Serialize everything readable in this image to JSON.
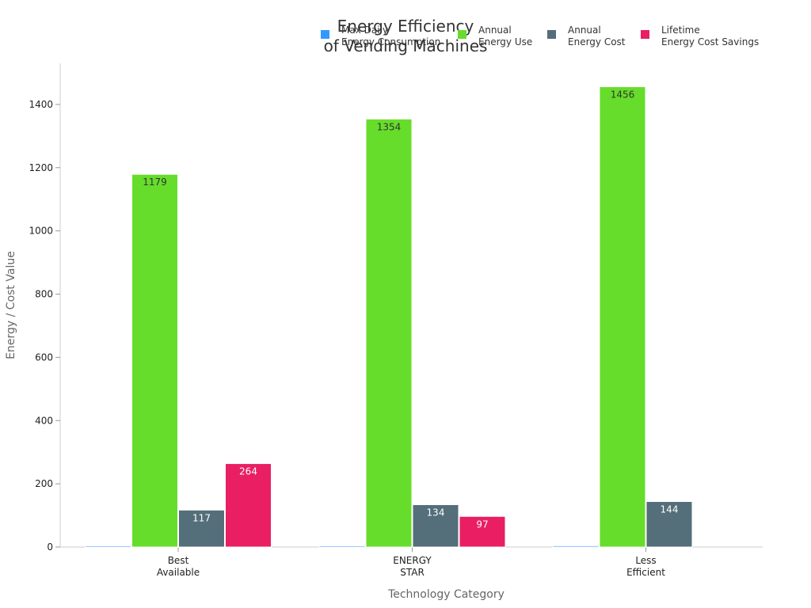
{
  "chart_data": {
    "type": "bar",
    "title_lines": [
      "Energy Efficiency",
      "of Vending Machines"
    ],
    "xlabel": "Technology Category",
    "ylabel": "Energy / Cost Value",
    "ylim": [
      0,
      1530
    ],
    "yticks": [
      0,
      200,
      400,
      600,
      800,
      1000,
      1200,
      1400
    ],
    "categories": [
      [
        "Best",
        "Available"
      ],
      [
        "ENERGY",
        "STAR"
      ],
      [
        "Less",
        "Efficient"
      ]
    ],
    "series": [
      {
        "name_lines": [
          "Max Daily",
          "Energy Consumption"
        ],
        "color": "#3399ff",
        "values": [
          3.2,
          3.7,
          4.0
        ],
        "labels": [
          "",
          "",
          ""
        ],
        "label_color": "#333333"
      },
      {
        "name_lines": [
          "Annual",
          "Energy Use"
        ],
        "color": "#66dd2a",
        "values": [
          1179,
          1354,
          1456
        ],
        "labels": [
          "1179",
          "1354",
          "1456"
        ],
        "label_color": "#333333"
      },
      {
        "name_lines": [
          "Annual",
          "Energy Cost"
        ],
        "color": "#546e7a",
        "values": [
          117,
          134,
          144
        ],
        "labels": [
          "117",
          "134",
          "144"
        ],
        "label_color": "#ffffff"
      },
      {
        "name_lines": [
          "Lifetime",
          "Energy Cost Savings"
        ],
        "color": "#e91e63",
        "values": [
          264,
          97,
          null
        ],
        "labels": [
          "264",
          "97",
          ""
        ],
        "label_color": "#ffffff"
      }
    ],
    "legend_position": "top-right",
    "grid": false
  }
}
